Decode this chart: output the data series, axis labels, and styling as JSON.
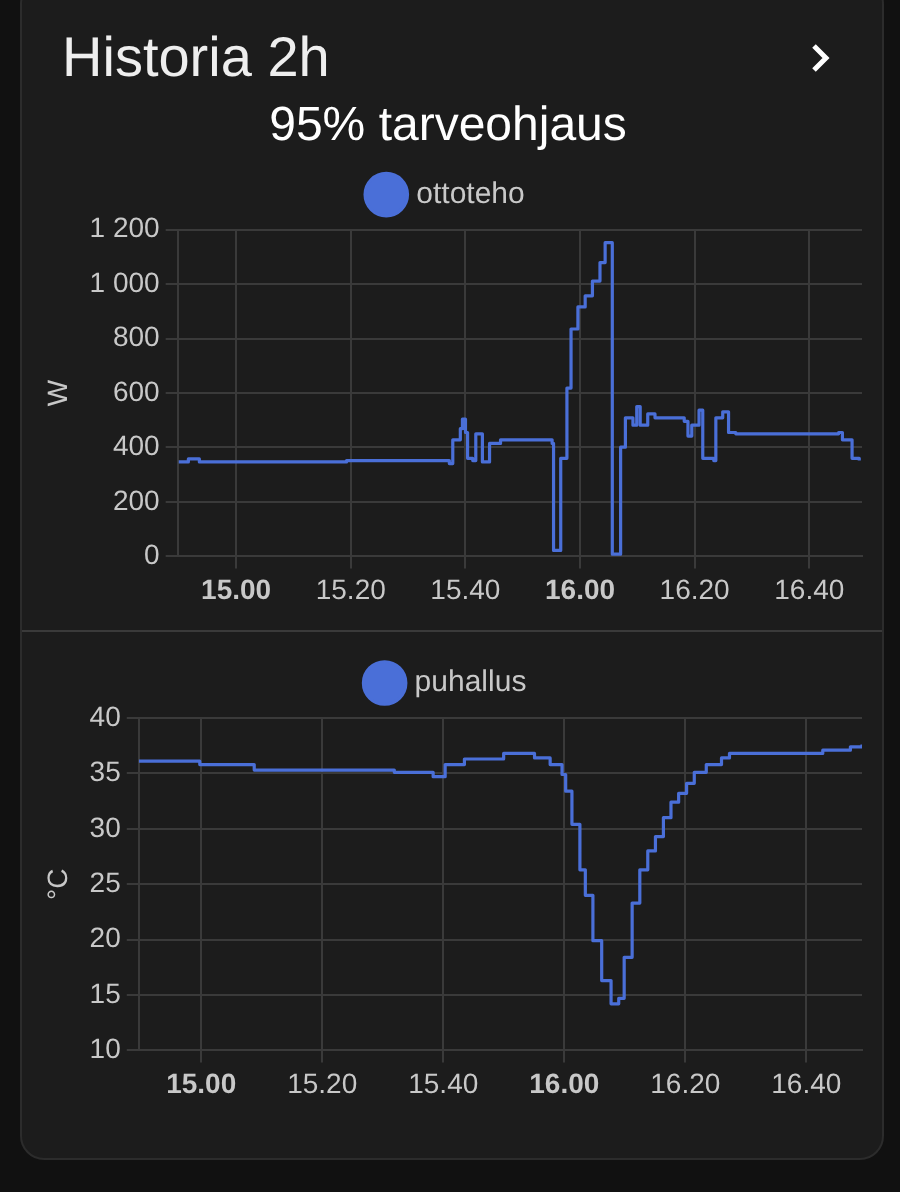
{
  "chart_data": [
    {
      "type": "step",
      "title": "Historia 2h",
      "subtitle": "95% tarveohjaus",
      "ylabel": "W",
      "legend": "top",
      "grid": true,
      "marker": "none",
      "xlim": [
        "--01-01T14:49:48",
        "--01-01T16:49:12"
      ],
      "xticks": [
        {
          "value": "--01-01T15:00",
          "label": "15.00"
        },
        {
          "value": "--01-01T15:20",
          "label": "15.20"
        },
        {
          "value": "--01-01T15:40",
          "label": "15.40"
        },
        {
          "value": "--01-01T16:00",
          "label": "16.00"
        },
        {
          "value": "--01-01T16:20",
          "label": "16.20"
        },
        {
          "value": "--01-01T16:40",
          "label": "16.40"
        }
      ],
      "ylim": [
        0,
        1200
      ],
      "yticks": [
        {
          "value": 0,
          "label": "0"
        },
        {
          "value": 200,
          "label": "200"
        },
        {
          "value": 400,
          "label": "400"
        },
        {
          "value": 600,
          "label": "600"
        },
        {
          "value": 800,
          "label": "800"
        },
        {
          "value": 1000,
          "label": "1 000"
        },
        {
          "value": 1200,
          "label": "1 200"
        }
      ],
      "series": [
        {
          "name": "ottoteho",
          "color": "#4a6fd8",
          "x": [
            "--01-01T14:49:59",
            "--01-01T14:51:40",
            "--01-01T14:53:35",
            "--01-01T15:19:16",
            "--01-01T15:37:12",
            "--01-01T15:37:48",
            "--01-01T15:39:07",
            "--01-01T15:39:29",
            "--01-01T15:40:01",
            "--01-01T15:40:23",
            "--01-01T15:41:17",
            "--01-01T15:41:49",
            "--01-01T15:42:43",
            "--01-01T15:42:58",
            "--01-01T15:44:13",
            "--01-01T15:46:08",
            "--01-01T15:55:08",
            "--01-01T15:55:23",
            "--01-01T15:56:24",
            "--01-01T15:56:38",
            "--01-01T15:57:11",
            "--01-01T15:57:43",
            "--01-01T15:58:26",
            "--01-01T15:59:38",
            "--01-01T16:00:54",
            "--01-01T16:02:10",
            "--01-01T16:03:29",
            "--01-01T16:04:23",
            "--01-01T16:05:24",
            "--01-01T16:05:38",
            "--01-01T16:06:40",
            "--01-01T16:07:05",
            "--01-01T16:07:55",
            "--01-01T16:09:14",
            "--01-01T16:09:54",
            "--01-01T16:10:30",
            "--01-01T16:11:49",
            "--01-01T16:13:05",
            "--01-01T16:16:55",
            "--01-01T16:18:11",
            "--01-01T16:18:50",
            "--01-01T16:19:30",
            "--01-01T16:20:46",
            "--01-01T16:21:25",
            "--01-01T16:23:20",
            "--01-01T16:23:42",
            "--01-01T16:24:54",
            "--01-01T16:25:55",
            "--01-01T16:27:11",
            "--01-01T16:45:07",
            "--01-01T16:45:47",
            "--01-01T16:47:02",
            "--01-01T16:47:28",
            "--01-01T16:48:43"
          ],
          "values": [
            347,
            358,
            347,
            352,
            341,
            428,
            469,
            504,
            455,
            360,
            352,
            450,
            450,
            347,
            415,
            428,
            415,
            22,
            22,
            360,
            360,
            618,
            835,
            916,
            957,
            1011,
            1079,
            1152,
            1152,
            8,
            8,
            401,
            509,
            482,
            550,
            482,
            523,
            509,
            509,
            496,
            442,
            482,
            537,
            360,
            352,
            509,
            531,
            455,
            450,
            455,
            428,
            428,
            360,
            352
          ]
        }
      ]
    },
    {
      "type": "step",
      "ylabel": "°C",
      "legend": "top",
      "grid": true,
      "marker": "none",
      "xlim": [
        "--01-01T14:49:41",
        "--01-01T16:49:12"
      ],
      "xticks": [
        {
          "value": "--01-01T15:00",
          "label": "15.00"
        },
        {
          "value": "--01-01T15:20",
          "label": "15.20"
        },
        {
          "value": "--01-01T15:40",
          "label": "15.40"
        },
        {
          "value": "--01-01T16:00",
          "label": "16.00"
        },
        {
          "value": "--01-01T16:20",
          "label": "16.20"
        },
        {
          "value": "--01-01T16:40",
          "label": "16.40"
        }
      ],
      "ylim": [
        10,
        40
      ],
      "yticks": [
        10,
        15,
        20,
        25,
        30,
        35,
        40
      ],
      "series": [
        {
          "name": "puhallus",
          "color": "#4a6fd8",
          "x": [
            "--01-01T14:49:41",
            "--01-01T14:59:46",
            "--01-01T15:08:46",
            "--01-01T15:21:40",
            "--01-01T15:31:55",
            "--01-01T15:38:20",
            "--01-01T15:40:19",
            "--01-01T15:43:30",
            "--01-01T15:49:59",
            "--01-01T15:55:05",
            "--01-01T15:57:40",
            "--01-01T15:59:38",
            "--01-01T16:00:14",
            "--01-01T16:01:16",
            "--01-01T16:02:35",
            "--01-01T16:03:29",
            "--01-01T16:04:44",
            "--01-01T16:06:11",
            "--01-01T16:07:44",
            "--01-01T16:09:00",
            "--01-01T16:09:54",
            "--01-01T16:11:13",
            "--01-01T16:12:29",
            "--01-01T16:13:48",
            "--01-01T16:15:04",
            "--01-01T16:16:23",
            "--01-01T16:17:38",
            "--01-01T16:18:54",
            "--01-01T16:20:13",
            "--01-01T16:21:29",
            "--01-01T16:23:28",
            "--01-01T16:25:59",
            "--01-01T16:27:18",
            "--01-01T16:36:18",
            "--01-01T16:42:43",
            "--01-01T16:47:17",
            "--01-01T16:49:12"
          ],
          "values": [
            36.1,
            35.8,
            35.3,
            35.3,
            35.1,
            34.7,
            35.8,
            36.3,
            36.8,
            36.4,
            35.8,
            34.9,
            33.4,
            30.4,
            26.3,
            24.0,
            19.9,
            16.3,
            14.2,
            14.7,
            18.4,
            23.3,
            26.3,
            28.0,
            29.3,
            31.0,
            32.4,
            33.2,
            34.1,
            35.1,
            35.8,
            36.4,
            36.8,
            36.8,
            37.1,
            37.4,
            37.6
          ]
        }
      ]
    }
  ]
}
